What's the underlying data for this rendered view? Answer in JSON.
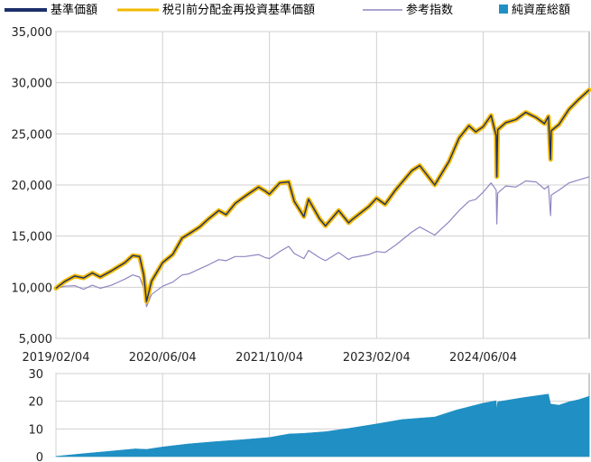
{
  "legend": [
    {
      "label": "基準価額",
      "color": "#1c2f6b",
      "kind": "line"
    },
    {
      "label": "税引前分配金再投資基準価額",
      "color": "#f2b900",
      "kind": "line"
    },
    {
      "label": "参考指数",
      "color": "#8f86c0",
      "kind": "line"
    },
    {
      "label": "純資産総額",
      "color": "#1f8fc4",
      "kind": "square"
    }
  ],
  "chart_data": [
    {
      "type": "line",
      "x_ticks": [
        "2019/02/04",
        "2020/06/04",
        "2021/10/04",
        "2023/02/04",
        "2024/06/04"
      ],
      "y_ticks": [
        "5,000",
        "10,000",
        "15,000",
        "20,000",
        "25,000",
        "30,000",
        "35,000"
      ],
      "ylim": [
        5000,
        35000
      ],
      "xlim": [
        "2019/02/04",
        "2025/09/30"
      ],
      "grid": true,
      "series": [
        {
          "name": "税引前分配金再投資基準価額",
          "color": "#f2b900",
          "points": [
            [
              "2019/02/04",
              9900
            ],
            [
              "2019/03/15",
              10550
            ],
            [
              "2019/05/01",
              11100
            ],
            [
              "2019/06/10",
              10900
            ],
            [
              "2019/07/20",
              11400
            ],
            [
              "2019/08/25",
              11000
            ],
            [
              "2019/10/15",
              11600
            ],
            [
              "2019/12/15",
              12400
            ],
            [
              "2020/01/20",
              13100
            ],
            [
              "2020/02/20",
              13000
            ],
            [
              "2020/03/10",
              11200
            ],
            [
              "2020/03/23",
              8600
            ],
            [
              "2020/04/15",
              10600
            ],
            [
              "2020/06/04",
              12400
            ],
            [
              "2020/07/20",
              13200
            ],
            [
              "2020/09/01",
              14800
            ],
            [
              "2020/10/01",
              15200
            ],
            [
              "2020/11/20",
              15900
            ],
            [
              "2020/12/31",
              16700
            ],
            [
              "2021/02/15",
              17500
            ],
            [
              "2021/03/20",
              17100
            ],
            [
              "2021/05/01",
              18200
            ],
            [
              "2021/06/15",
              18900
            ],
            [
              "2021/08/15",
              19800
            ],
            [
              "2021/09/15",
              19400
            ],
            [
              "2021/10/04",
              19100
            ],
            [
              "2021/11/20",
              20200
            ],
            [
              "2021/12/31",
              20300
            ],
            [
              "2022/01/25",
              18400
            ],
            [
              "2022/03/10",
              16900
            ],
            [
              "2022/03/31",
              18600
            ],
            [
              "2022/05/20",
              16700
            ],
            [
              "2022/06/16",
              16000
            ],
            [
              "2022/08/15",
              17500
            ],
            [
              "2022/09/30",
              16300
            ],
            [
              "2022/10/15",
              16600
            ],
            [
              "2022/12/31",
              17900
            ],
            [
              "2023/02/04",
              18700
            ],
            [
              "2023/03/15",
              18100
            ],
            [
              "2023/05/01",
              19500
            ],
            [
              "2023/07/15",
              21400
            ],
            [
              "2023/08/20",
              21900
            ],
            [
              "2023/10/27",
              20000
            ],
            [
              "2023/12/31",
              22300
            ],
            [
              "2024/02/15",
              24600
            ],
            [
              "2024/03/31",
              25800
            ],
            [
              "2024/05/01",
              25200
            ],
            [
              "2024/06/04",
              25700
            ],
            [
              "2024/07/10",
              26800
            ],
            [
              "2024/08/02",
              24800
            ],
            [
              "2024/08/05",
              20800
            ],
            [
              "2024/08/09",
              25400
            ],
            [
              "2024/09/15",
              26100
            ],
            [
              "2024/10/31",
              26400
            ],
            [
              "2024/12/15",
              27100
            ],
            [
              "2025/01/31",
              26600
            ],
            [
              "2025/03/10",
              26000
            ],
            [
              "2025/03/28",
              26700
            ],
            [
              "2025/04/07",
              22500
            ],
            [
              "2025/04/10",
              25300
            ],
            [
              "2025/05/15",
              25900
            ],
            [
              "2025/06/30",
              27400
            ],
            [
              "2025/08/15",
              28400
            ],
            [
              "2025/09/30",
              29300
            ]
          ]
        },
        {
          "name": "参考指数",
          "color": "#8f86c0",
          "points": [
            [
              "2019/02/04",
              9850
            ],
            [
              "2019/03/15",
              10100
            ],
            [
              "2019/05/01",
              10150
            ],
            [
              "2019/06/10",
              9800
            ],
            [
              "2019/07/20",
              10200
            ],
            [
              "2019/08/25",
              9900
            ],
            [
              "2019/10/15",
              10200
            ],
            [
              "2019/12/15",
              10800
            ],
            [
              "2020/01/20",
              11200
            ],
            [
              "2020/02/20",
              11000
            ],
            [
              "2020/03/10",
              9900
            ],
            [
              "2020/03/23",
              8100
            ],
            [
              "2020/04/15",
              9300
            ],
            [
              "2020/06/04",
              10100
            ],
            [
              "2020/07/20",
              10500
            ],
            [
              "2020/09/01",
              11200
            ],
            [
              "2020/10/01",
              11300
            ],
            [
              "2020/11/20",
              11800
            ],
            [
              "2020/12/31",
              12200
            ],
            [
              "2021/02/15",
              12700
            ],
            [
              "2021/03/20",
              12600
            ],
            [
              "2021/05/01",
              13000
            ],
            [
              "2021/06/15",
              13000
            ],
            [
              "2021/08/15",
              13200
            ],
            [
              "2021/09/15",
              12900
            ],
            [
              "2021/10/04",
              12800
            ],
            [
              "2021/11/20",
              13500
            ],
            [
              "2021/12/31",
              14000
            ],
            [
              "2022/01/25",
              13300
            ],
            [
              "2022/03/10",
              12800
            ],
            [
              "2022/03/31",
              13600
            ],
            [
              "2022/05/20",
              12900
            ],
            [
              "2022/06/16",
              12600
            ],
            [
              "2022/08/15",
              13400
            ],
            [
              "2022/09/30",
              12700
            ],
            [
              "2022/10/15",
              12900
            ],
            [
              "2022/12/31",
              13200
            ],
            [
              "2023/02/04",
              13500
            ],
            [
              "2023/03/15",
              13400
            ],
            [
              "2023/05/01",
              14100
            ],
            [
              "2023/07/15",
              15400
            ],
            [
              "2023/08/20",
              15900
            ],
            [
              "2023/10/27",
              15100
            ],
            [
              "2023/12/31",
              16400
            ],
            [
              "2024/02/15",
              17500
            ],
            [
              "2024/03/31",
              18400
            ],
            [
              "2024/05/01",
              18600
            ],
            [
              "2024/06/04",
              19300
            ],
            [
              "2024/07/10",
              20200
            ],
            [
              "2024/08/02",
              19500
            ],
            [
              "2024/08/05",
              16200
            ],
            [
              "2024/08/09",
              19200
            ],
            [
              "2024/09/15",
              19900
            ],
            [
              "2024/10/31",
              19800
            ],
            [
              "2024/12/15",
              20400
            ],
            [
              "2025/01/31",
              20300
            ],
            [
              "2025/03/10",
              19600
            ],
            [
              "2025/03/28",
              19900
            ],
            [
              "2025/04/07",
              17000
            ],
            [
              "2025/04/10",
              19000
            ],
            [
              "2025/05/15",
              19500
            ],
            [
              "2025/06/30",
              20200
            ],
            [
              "2025/08/15",
              20500
            ],
            [
              "2025/09/30",
              20800
            ]
          ]
        }
      ]
    },
    {
      "type": "area",
      "series_name": "純資産総額",
      "y_ticks": [
        "0",
        "10",
        "20",
        "30"
      ],
      "ylim": [
        0,
        30
      ],
      "xlim": [
        "2019/02/04",
        "2025/09/30"
      ],
      "grid": true,
      "color": "#1f8fc4",
      "points": [
        [
          "2019/02/04",
          0.1
        ],
        [
          "2019/06/01",
          1.0
        ],
        [
          "2019/10/01",
          1.9
        ],
        [
          "2020/02/01",
          2.8
        ],
        [
          "2020/03/23",
          2.6
        ],
        [
          "2020/06/04",
          3.5
        ],
        [
          "2020/10/01",
          4.6
        ],
        [
          "2021/02/01",
          5.4
        ],
        [
          "2021/06/01",
          6.1
        ],
        [
          "2021/10/04",
          6.9
        ],
        [
          "2022/01/01",
          8.2
        ],
        [
          "2022/03/10",
          8.4
        ],
        [
          "2022/06/16",
          9.0
        ],
        [
          "2022/10/01",
          10.2
        ],
        [
          "2023/02/04",
          11.8
        ],
        [
          "2023/06/01",
          13.4
        ],
        [
          "2023/10/27",
          14.3
        ],
        [
          "2024/02/01",
          16.8
        ],
        [
          "2024/06/04",
          19.3
        ],
        [
          "2024/08/02",
          20.2
        ],
        [
          "2024/08/05",
          17.0
        ],
        [
          "2024/08/09",
          19.8
        ],
        [
          "2024/12/01",
          21.3
        ],
        [
          "2025/03/28",
          22.6
        ],
        [
          "2025/04/07",
          19.0
        ],
        [
          "2025/05/15",
          18.6
        ],
        [
          "2025/06/30",
          19.8
        ],
        [
          "2025/08/15",
          20.6
        ],
        [
          "2025/09/30",
          21.8
        ]
      ]
    }
  ]
}
